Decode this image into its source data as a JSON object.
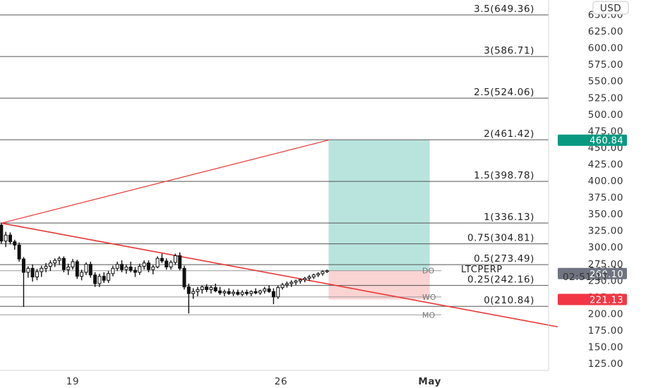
{
  "currency_button": "USD",
  "symbol": "LTCPERP",
  "colors": {
    "up": "#26a69a",
    "down": "#ef5350",
    "candle": "#111111",
    "fib_line": "#555555",
    "trend": "#e53935",
    "profit_zone": "#b9e4de",
    "loss_zone": "#fad3d3",
    "price_tag_green": "#089981",
    "price_tag_red": "#f23645",
    "price_tag_gray": "#6f7480"
  },
  "price_tags": [
    {
      "label": "460.84",
      "price": 460.84,
      "color": "#089981"
    },
    {
      "label": "264.40",
      "price": 264.4,
      "color": "#ffffff",
      "dark": true
    },
    {
      "label": "260.10",
      "price": 260.1,
      "color": "#6f7480"
    },
    {
      "label": "221.13",
      "price": 221.13,
      "color": "#f23645"
    }
  ],
  "countdown": "02:51:17",
  "chart_data": {
    "type": "candlestick",
    "yaxis_ticks": [
      "650.00",
      "625.00",
      "600.00",
      "575.00",
      "550.00",
      "525.00",
      "500.00",
      "475.00",
      "450.00",
      "425.00",
      "400.00",
      "375.00",
      "350.00",
      "325.00",
      "300.00",
      "275.00",
      "250.00",
      "225.00",
      "200.00",
      "175.00",
      "150.00",
      "125.00"
    ],
    "ylim": [
      110,
      660
    ],
    "xaxis_ticks": [
      {
        "label": "19",
        "x": 6,
        "bold": false
      },
      {
        "label": "26",
        "x": 13,
        "bold": false
      },
      {
        "label": "May",
        "x": 18,
        "bold": true
      }
    ],
    "xlim": [
      2.7,
      22.3
    ],
    "fib_levels": [
      {
        "label": "3.5(649.36)",
        "price": 649.36
      },
      {
        "label": "3(586.71)",
        "price": 586.71
      },
      {
        "label": "2.5(524.06)",
        "price": 524.06
      },
      {
        "label": "2(461.42)",
        "price": 461.42
      },
      {
        "label": "1.5(398.78)",
        "price": 398.78
      },
      {
        "label": "1(336.13)",
        "price": 336.13
      },
      {
        "label": "0.75(304.81)",
        "price": 304.81
      },
      {
        "label": "0.5(273.49)",
        "price": 273.49
      },
      {
        "label": "0.25(242.16)",
        "price": 242.16
      },
      {
        "label": "0(210.84)",
        "price": 210.84
      }
    ],
    "horizontal_levels": [
      {
        "label": "DO",
        "price": 264.4
      },
      {
        "label": "WO",
        "price": 225.0
      },
      {
        "label": "MO",
        "price": 198.0
      }
    ],
    "trendlines": [
      {
        "from": [
          3.6,
          336.0
        ],
        "to": [
          14.6,
          461.0
        ]
      },
      {
        "from": [
          3.6,
          336.0
        ],
        "to": [
          22.3,
          180.0
        ]
      }
    ],
    "position": {
      "entry": 264.4,
      "target": 460.84,
      "stop": 221.13,
      "x_start": 14.6,
      "x_end": 18.0
    },
    "candles": [
      [
        2.7,
        268,
        298,
        262,
        290
      ],
      [
        2.85,
        290,
        307,
        286,
        303
      ],
      [
        3.0,
        303,
        318,
        300,
        314
      ],
      [
        3.15,
        314,
        332,
        309,
        327
      ],
      [
        3.3,
        327,
        335,
        315,
        320
      ],
      [
        3.45,
        320,
        337,
        316,
        333
      ],
      [
        3.6,
        333,
        336,
        305,
        309
      ],
      [
        3.75,
        309,
        323,
        300,
        318
      ],
      [
        3.9,
        318,
        322,
        304,
        308
      ],
      [
        4.05,
        308,
        311,
        296,
        303
      ],
      [
        4.2,
        303,
        307,
        278,
        282
      ],
      [
        4.35,
        282,
        285,
        210,
        262
      ],
      [
        4.5,
        262,
        271,
        254,
        268
      ],
      [
        4.65,
        268,
        274,
        248,
        255
      ],
      [
        4.8,
        255,
        267,
        250,
        263
      ],
      [
        4.95,
        263,
        272,
        255,
        268
      ],
      [
        5.1,
        268,
        276,
        262,
        271
      ],
      [
        5.25,
        271,
        280,
        264,
        276
      ],
      [
        5.4,
        276,
        283,
        270,
        280
      ],
      [
        5.55,
        280,
        286,
        273,
        283
      ],
      [
        5.7,
        283,
        286,
        262,
        266
      ],
      [
        5.85,
        266,
        275,
        258,
        270
      ],
      [
        6.0,
        270,
        282,
        266,
        278
      ],
      [
        6.15,
        278,
        281,
        252,
        256
      ],
      [
        6.3,
        256,
        266,
        250,
        262
      ],
      [
        6.45,
        262,
        277,
        258,
        274
      ],
      [
        6.6,
        274,
        278,
        254,
        258
      ],
      [
        6.75,
        258,
        262,
        240,
        245
      ],
      [
        6.9,
        245,
        260,
        240,
        256
      ],
      [
        7.05,
        256,
        262,
        246,
        250
      ],
      [
        7.2,
        250,
        264,
        246,
        260
      ],
      [
        7.35,
        260,
        272,
        256,
        268
      ],
      [
        7.5,
        268,
        278,
        264,
        274
      ],
      [
        7.65,
        274,
        280,
        262,
        266
      ],
      [
        7.8,
        266,
        274,
        260,
        270
      ],
      [
        7.95,
        270,
        278,
        262,
        265
      ],
      [
        8.1,
        265,
        270,
        255,
        262
      ],
      [
        8.25,
        262,
        275,
        258,
        271
      ],
      [
        8.4,
        271,
        280,
        266,
        276
      ],
      [
        8.55,
        276,
        280,
        262,
        266
      ],
      [
        8.7,
        266,
        273,
        259,
        270
      ],
      [
        8.85,
        270,
        286,
        268,
        283
      ],
      [
        9.0,
        283,
        290,
        276,
        279
      ],
      [
        9.15,
        279,
        283,
        266,
        270
      ],
      [
        9.3,
        270,
        280,
        266,
        277
      ],
      [
        9.45,
        277,
        290,
        273,
        287
      ],
      [
        9.6,
        287,
        292,
        265,
        268
      ],
      [
        9.75,
        268,
        272,
        236,
        240
      ],
      [
        9.9,
        240,
        245,
        200,
        230
      ],
      [
        10.05,
        230,
        238,
        222,
        233
      ],
      [
        10.2,
        233,
        240,
        226,
        236
      ],
      [
        10.35,
        236,
        242,
        230,
        240
      ],
      [
        10.5,
        240,
        244,
        232,
        236
      ],
      [
        10.65,
        236,
        242,
        230,
        239
      ],
      [
        10.8,
        239,
        245,
        232,
        234
      ],
      [
        10.95,
        234,
        240,
        228,
        231
      ],
      [
        11.1,
        231,
        236,
        226,
        233
      ],
      [
        11.25,
        233,
        238,
        228,
        230
      ],
      [
        11.4,
        230,
        236,
        226,
        232
      ],
      [
        11.55,
        232,
        236,
        227,
        229
      ],
      [
        11.7,
        229,
        235,
        226,
        232
      ],
      [
        11.85,
        232,
        236,
        227,
        230
      ],
      [
        12.0,
        230,
        235,
        226,
        233
      ],
      [
        12.15,
        233,
        238,
        229,
        231
      ],
      [
        12.3,
        231,
        236,
        228,
        234
      ],
      [
        12.45,
        234,
        240,
        230,
        237
      ],
      [
        12.6,
        237,
        242,
        231,
        233
      ],
      [
        12.75,
        233,
        238,
        214,
        225
      ],
      [
        12.9,
        225,
        242,
        222,
        239
      ],
      [
        13.05,
        239,
        246,
        236,
        243
      ],
      [
        13.2,
        243,
        248,
        239,
        245
      ],
      [
        13.35,
        245,
        250,
        240,
        247
      ],
      [
        13.5,
        247,
        251,
        243,
        249
      ],
      [
        13.65,
        249,
        253,
        245,
        251
      ],
      [
        13.8,
        251,
        255,
        247,
        253
      ],
      [
        13.95,
        253,
        258,
        249,
        255
      ],
      [
        14.1,
        255,
        260,
        252,
        258
      ],
      [
        14.25,
        258,
        262,
        255,
        260
      ],
      [
        14.4,
        260,
        265,
        257,
        263
      ],
      [
        14.55,
        263,
        266,
        261,
        264.4
      ]
    ]
  }
}
